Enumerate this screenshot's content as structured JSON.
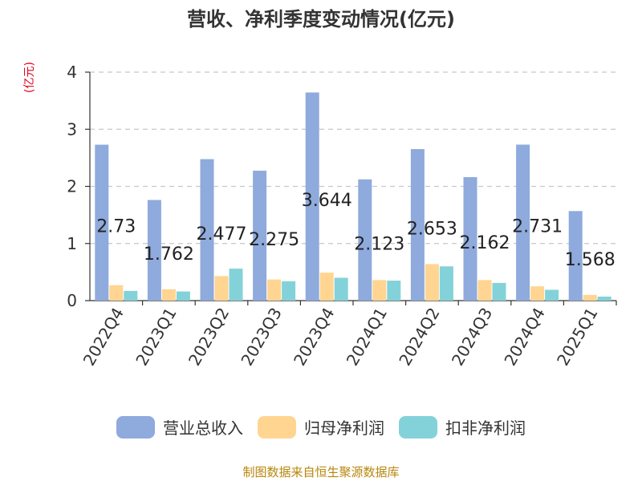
{
  "title": "营收、净利季度变动情况(亿元)",
  "unit_label": "(亿元)",
  "source": "制图数据来自恒生聚源数据库",
  "chart_data": {
    "type": "bar",
    "categories": [
      "2022Q4",
      "2023Q1",
      "2023Q2",
      "2023Q3",
      "2023Q4",
      "2024Q1",
      "2024Q2",
      "2024Q3",
      "2024Q4",
      "2025Q1"
    ],
    "series": [
      {
        "name": "营业总收入",
        "color": "#8faadc",
        "values": [
          2.73,
          1.762,
          2.477,
          2.275,
          3.644,
          2.123,
          2.653,
          2.162,
          2.731,
          1.568
        ]
      },
      {
        "name": "归母净利润",
        "color": "#ffd591",
        "values": [
          0.27,
          0.2,
          0.43,
          0.37,
          0.49,
          0.36,
          0.64,
          0.36,
          0.25,
          0.1
        ]
      },
      {
        "name": "扣非净利润",
        "color": "#84d2d9",
        "values": [
          0.17,
          0.16,
          0.56,
          0.34,
          0.4,
          0.35,
          0.6,
          0.31,
          0.19,
          0.07
        ]
      }
    ],
    "data_labels": [
      "2.73",
      "1.762",
      "2.477",
      "2.275",
      "3.644",
      "2.123",
      "2.653",
      "2.162",
      "2.731",
      "1.568"
    ],
    "ylim": [
      0,
      4
    ],
    "yticks": [
      0,
      1,
      2,
      3,
      4
    ],
    "grid": true,
    "legend_position": "bottom"
  }
}
